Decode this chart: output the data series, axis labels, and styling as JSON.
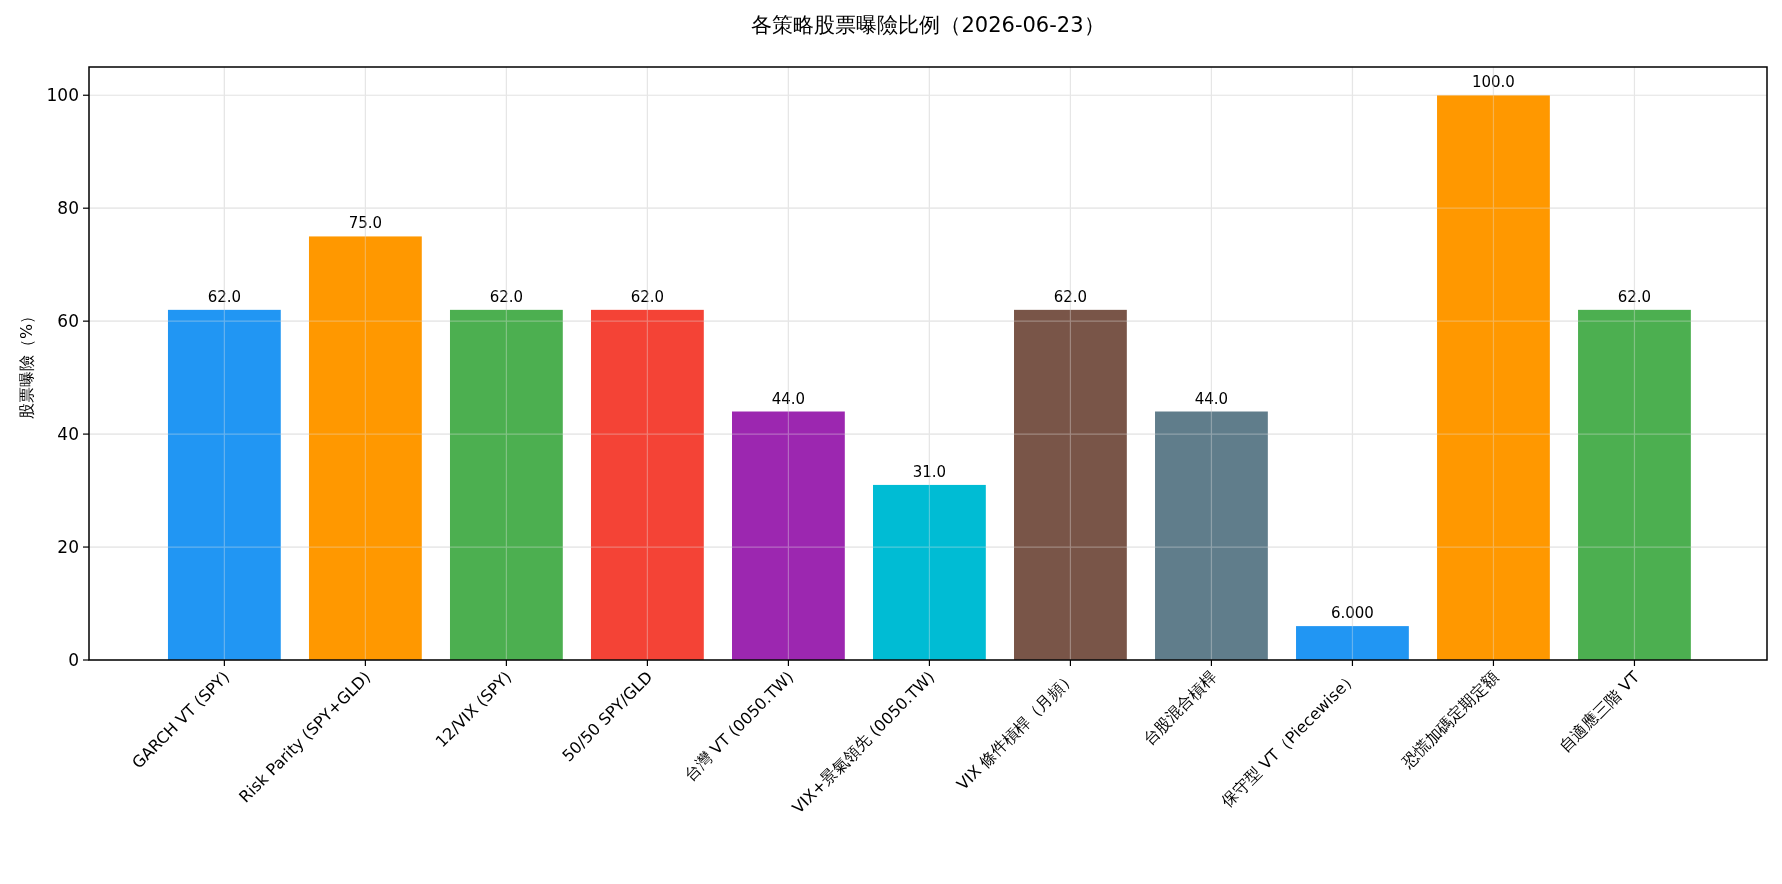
{
  "chart_data": {
    "type": "bar",
    "title": "各策略股票曝險比例（2026-06-23）",
    "ylabel": "股票曝險（%）",
    "categories": [
      "GARCH VT (SPY)",
      "Risk Parity (SPY+GLD)",
      "12/VIX (SPY)",
      "50/50 SPY/GLD",
      "台灣 VT (0050.TW)",
      "VIX+景氣領先 (0050.TW)",
      "VIX 條件槓桿（月頻）",
      "台股混合槓桿",
      "保守型 VT（Piecewise）",
      "恐慌加碼定期定額",
      "自適應三階 VT"
    ],
    "values": [
      62,
      75,
      62,
      62,
      44,
      31,
      62,
      44,
      6,
      100,
      62
    ],
    "value_labels": [
      "62.0",
      "75.0",
      "62.0",
      "62.0",
      "44.0",
      "31.0",
      "62.0",
      "44.0",
      "6.000",
      "100.0",
      "62.0"
    ],
    "colors": [
      "#2196f3",
      "#ff9800",
      "#4caf50",
      "#f44336",
      "#9c27b0",
      "#00bcd4",
      "#795548",
      "#607d8b",
      "#2196f3",
      "#ff9800",
      "#4caf50"
    ],
    "ylim": [
      0,
      105
    ],
    "yticks": [
      0,
      20,
      40,
      60,
      80,
      100
    ],
    "grid": true
  }
}
